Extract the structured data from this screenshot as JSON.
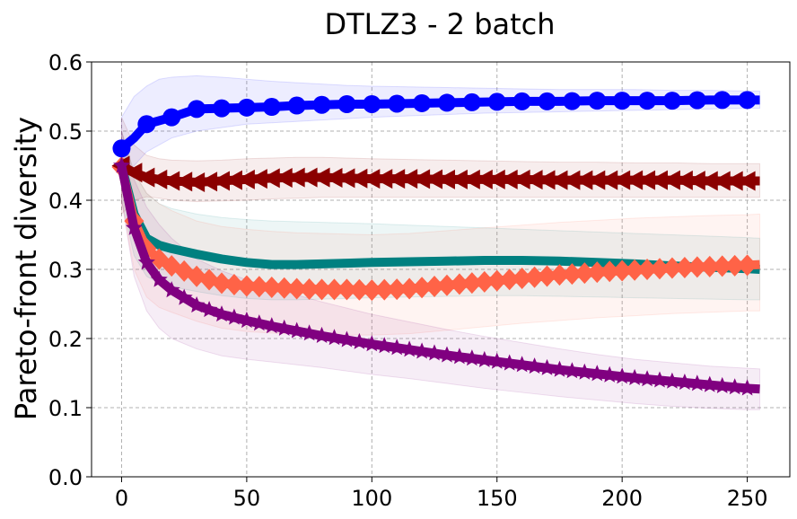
{
  "chart_data": {
    "type": "line",
    "title": "DTLZ3 - 2 batch",
    "xlabel": "",
    "ylabel": "Pareto-front diversity",
    "xlim": [
      -12,
      267
    ],
    "ylim": [
      0.0,
      0.6
    ],
    "xticks": [
      0,
      50,
      100,
      150,
      200,
      250
    ],
    "yticks": [
      0.0,
      0.1,
      0.2,
      0.3,
      0.4,
      0.5,
      0.6
    ],
    "xtick_labels": [
      "0",
      "50",
      "100",
      "150",
      "200",
      "250"
    ],
    "ytick_labels": [
      "0.0",
      "0.1",
      "0.2",
      "0.3",
      "0.4",
      "0.5",
      "0.6"
    ],
    "grid": true,
    "series": [
      {
        "name": "blue",
        "color": "#0000ff",
        "marker": "circle",
        "x": [
          0,
          5,
          10,
          15,
          20,
          30,
          40,
          50,
          60,
          70,
          80,
          90,
          100,
          115,
          130,
          145,
          160,
          175,
          190,
          205,
          220,
          235,
          250,
          255
        ],
        "y": [
          0.475,
          0.49,
          0.51,
          0.515,
          0.52,
          0.532,
          0.533,
          0.534,
          0.535,
          0.537,
          0.538,
          0.539,
          0.539,
          0.54,
          0.541,
          0.542,
          0.543,
          0.543,
          0.544,
          0.544,
          0.544,
          0.545,
          0.545,
          0.545
        ],
        "upper": [
          0.52,
          0.55,
          0.565,
          0.575,
          0.578,
          0.58,
          0.578,
          0.575,
          0.572,
          0.57,
          0.568,
          0.566,
          0.565,
          0.564,
          0.563,
          0.562,
          0.561,
          0.56,
          0.56,
          0.56,
          0.559,
          0.559,
          0.558,
          0.558
        ],
        "lower": [
          0.43,
          0.45,
          0.47,
          0.48,
          0.49,
          0.5,
          0.505,
          0.51,
          0.512,
          0.514,
          0.516,
          0.518,
          0.52,
          0.522,
          0.524,
          0.526,
          0.527,
          0.528,
          0.529,
          0.53,
          0.531,
          0.532,
          0.533,
          0.533
        ]
      },
      {
        "name": "darkred",
        "color": "#8b0000",
        "marker": "triangle-left",
        "x": [
          0,
          5,
          10,
          15,
          20,
          30,
          40,
          50,
          60,
          70,
          80,
          90,
          100,
          115,
          130,
          145,
          160,
          175,
          190,
          205,
          220,
          235,
          250,
          255
        ],
        "y": [
          0.45,
          0.44,
          0.433,
          0.43,
          0.428,
          0.426,
          0.428,
          0.43,
          0.432,
          0.433,
          0.433,
          0.432,
          0.431,
          0.431,
          0.43,
          0.43,
          0.43,
          0.429,
          0.429,
          0.429,
          0.429,
          0.428,
          0.428,
          0.428
        ],
        "upper": [
          0.52,
          0.48,
          0.465,
          0.46,
          0.458,
          0.457,
          0.458,
          0.46,
          0.461,
          0.462,
          0.462,
          0.461,
          0.46,
          0.459,
          0.458,
          0.457,
          0.456,
          0.455,
          0.455,
          0.454,
          0.454,
          0.453,
          0.453,
          0.453
        ],
        "lower": [
          0.38,
          0.4,
          0.405,
          0.403,
          0.4,
          0.398,
          0.399,
          0.4,
          0.402,
          0.403,
          0.404,
          0.404,
          0.404,
          0.404,
          0.404,
          0.404,
          0.404,
          0.404,
          0.404,
          0.404,
          0.404,
          0.404,
          0.404,
          0.404
        ]
      },
      {
        "name": "teal",
        "color": "#008080",
        "marker": "none",
        "x": [
          0,
          5,
          10,
          15,
          20,
          30,
          40,
          50,
          60,
          70,
          80,
          90,
          100,
          115,
          130,
          145,
          160,
          175,
          190,
          205,
          220,
          235,
          250,
          255
        ],
        "y": [
          0.45,
          0.38,
          0.345,
          0.335,
          0.33,
          0.322,
          0.315,
          0.31,
          0.307,
          0.307,
          0.308,
          0.309,
          0.31,
          0.311,
          0.312,
          0.313,
          0.313,
          0.312,
          0.31,
          0.308,
          0.305,
          0.303,
          0.301,
          0.3
        ],
        "upper": [
          0.5,
          0.44,
          0.41,
          0.395,
          0.388,
          0.38,
          0.375,
          0.372,
          0.37,
          0.369,
          0.368,
          0.367,
          0.366,
          0.364,
          0.362,
          0.36,
          0.358,
          0.356,
          0.354,
          0.352,
          0.35,
          0.348,
          0.346,
          0.345
        ],
        "lower": [
          0.4,
          0.32,
          0.29,
          0.28,
          0.275,
          0.268,
          0.262,
          0.258,
          0.256,
          0.256,
          0.257,
          0.258,
          0.259,
          0.26,
          0.261,
          0.262,
          0.262,
          0.261,
          0.26,
          0.259,
          0.258,
          0.257,
          0.256,
          0.256
        ]
      },
      {
        "name": "tomato",
        "color": "#ff6347",
        "marker": "diamond",
        "x": [
          0,
          5,
          10,
          15,
          20,
          30,
          40,
          50,
          60,
          70,
          80,
          90,
          100,
          115,
          130,
          145,
          160,
          175,
          190,
          205,
          220,
          235,
          250,
          255
        ],
        "y": [
          0.448,
          0.37,
          0.33,
          0.315,
          0.305,
          0.29,
          0.28,
          0.276,
          0.274,
          0.272,
          0.271,
          0.271,
          0.27,
          0.272,
          0.277,
          0.282,
          0.287,
          0.292,
          0.296,
          0.299,
          0.302,
          0.304,
          0.306,
          0.307
        ],
        "upper": [
          0.5,
          0.44,
          0.41,
          0.395,
          0.385,
          0.37,
          0.362,
          0.358,
          0.355,
          0.353,
          0.352,
          0.351,
          0.35,
          0.352,
          0.356,
          0.36,
          0.364,
          0.368,
          0.371,
          0.374,
          0.376,
          0.378,
          0.379,
          0.38
        ],
        "lower": [
          0.4,
          0.3,
          0.26,
          0.245,
          0.238,
          0.225,
          0.215,
          0.21,
          0.208,
          0.206,
          0.205,
          0.205,
          0.205,
          0.207,
          0.212,
          0.217,
          0.222,
          0.226,
          0.23,
          0.233,
          0.236,
          0.238,
          0.24,
          0.24
        ]
      },
      {
        "name": "purple",
        "color": "#800080",
        "marker": "star",
        "x": [
          0,
          5,
          10,
          15,
          20,
          30,
          40,
          50,
          60,
          70,
          80,
          90,
          100,
          115,
          130,
          145,
          160,
          175,
          190,
          205,
          220,
          235,
          250,
          255
        ],
        "y": [
          0.45,
          0.36,
          0.31,
          0.285,
          0.27,
          0.248,
          0.235,
          0.226,
          0.218,
          0.211,
          0.204,
          0.198,
          0.192,
          0.184,
          0.176,
          0.169,
          0.162,
          0.155,
          0.149,
          0.143,
          0.138,
          0.133,
          0.128,
          0.127
        ],
        "upper": [
          0.5,
          0.43,
          0.39,
          0.365,
          0.345,
          0.315,
          0.298,
          0.285,
          0.274,
          0.263,
          0.253,
          0.244,
          0.235,
          0.224,
          0.213,
          0.203,
          0.194,
          0.185,
          0.177,
          0.17,
          0.165,
          0.16,
          0.157,
          0.156
        ],
        "lower": [
          0.4,
          0.29,
          0.24,
          0.215,
          0.2,
          0.185,
          0.175,
          0.17,
          0.166,
          0.162,
          0.158,
          0.153,
          0.148,
          0.142,
          0.135,
          0.128,
          0.122,
          0.116,
          0.111,
          0.106,
          0.102,
          0.099,
          0.097,
          0.097
        ]
      }
    ]
  }
}
